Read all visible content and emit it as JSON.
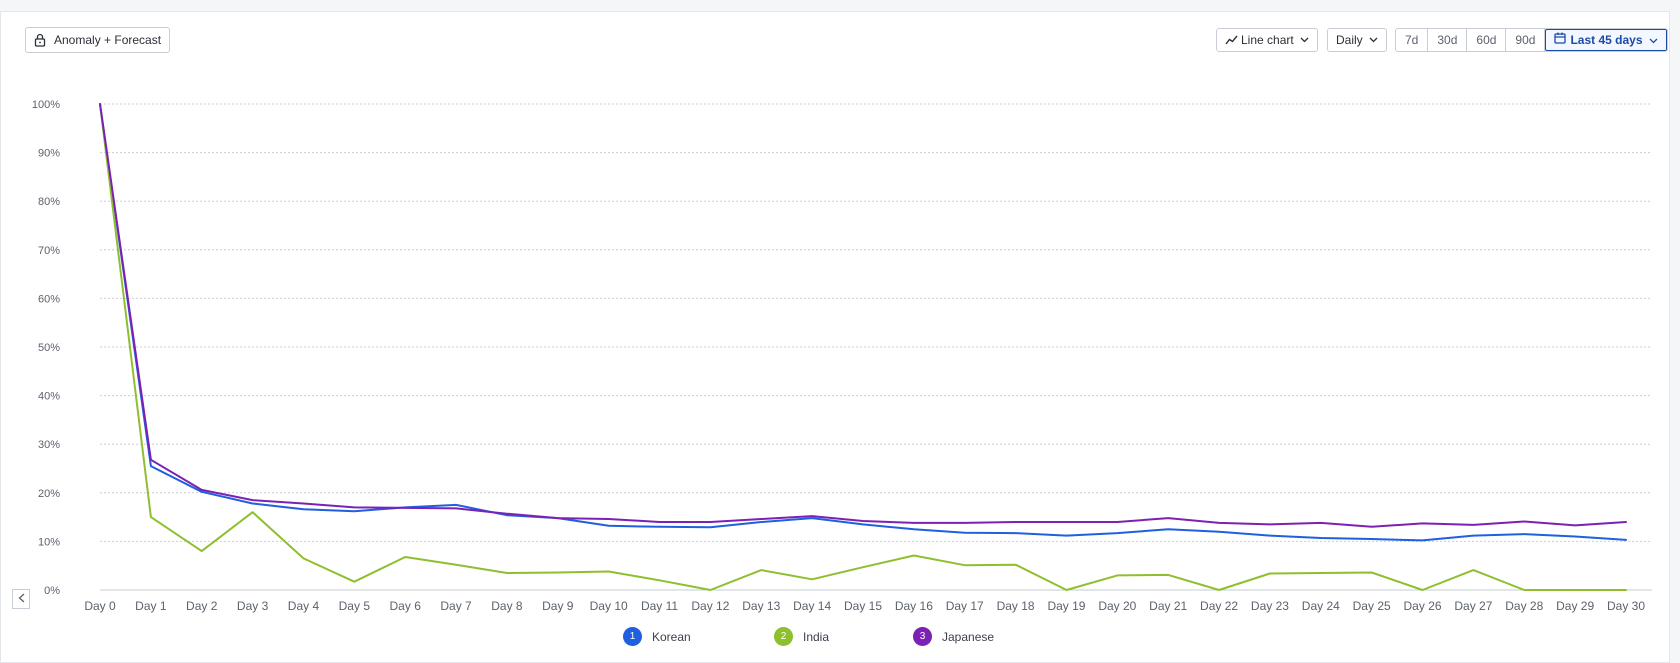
{
  "toolbar": {
    "anomaly_label": "Anomaly + Forecast",
    "chart_type_label": "Line chart",
    "interval_label": "Daily",
    "ranges": [
      "7d",
      "30d",
      "60d",
      "90d"
    ],
    "active_range_label": "Last 45 days"
  },
  "legend": [
    {
      "index": "1",
      "name": "Korean",
      "color": "#1f5fe0"
    },
    {
      "index": "2",
      "name": "India",
      "color": "#8fbf2e"
    },
    {
      "index": "3",
      "name": "Japanese",
      "color": "#7b22b4"
    }
  ],
  "chart_data": {
    "type": "line",
    "title": "",
    "xlabel": "",
    "ylabel": "",
    "ylim": [
      0,
      100
    ],
    "yticks": [
      "0%",
      "10%",
      "20%",
      "30%",
      "40%",
      "50%",
      "60%",
      "70%",
      "80%",
      "90%",
      "100%"
    ],
    "grid": true,
    "legend_position": "bottom",
    "categories": [
      "Day 0",
      "Day 1",
      "Day 2",
      "Day 3",
      "Day 4",
      "Day 5",
      "Day 6",
      "Day 7",
      "Day 8",
      "Day 9",
      "Day 10",
      "Day 11",
      "Day 12",
      "Day 13",
      "Day 14",
      "Day 15",
      "Day 16",
      "Day 17",
      "Day 18",
      "Day 19",
      "Day 20",
      "Day 21",
      "Day 22",
      "Day 23",
      "Day 24",
      "Day 25",
      "Day 26",
      "Day 27",
      "Day 28",
      "Day 29",
      "Day 30"
    ],
    "series": [
      {
        "name": "Korean",
        "color": "#1f5fe0",
        "values": [
          100,
          25.5,
          20.2,
          17.8,
          16.6,
          16.2,
          17,
          17.5,
          15.4,
          14.8,
          13.2,
          13,
          12.9,
          14,
          14.8,
          13.5,
          12.5,
          11.8,
          11.7,
          11.2,
          11.7,
          12.5,
          12,
          11.2,
          10.7,
          10.5,
          10.2,
          11.2,
          11.5,
          11,
          10.3
        ]
      },
      {
        "name": "India",
        "color": "#8fbf2e",
        "values": [
          100,
          15,
          8,
          16,
          6.5,
          1.7,
          6.8,
          5.2,
          3.5,
          3.6,
          3.8,
          2,
          0,
          4.1,
          2.2,
          4.7,
          7.1,
          5.1,
          5.2,
          0,
          3,
          3.1,
          0,
          3.4,
          3.5,
          3.6,
          0,
          4.1,
          0,
          0,
          0
        ]
      },
      {
        "name": "Japanese",
        "color": "#7b22b4",
        "values": [
          100,
          26.8,
          20.6,
          18.5,
          17.8,
          17,
          16.9,
          16.8,
          15.7,
          14.8,
          14.6,
          14,
          14,
          14.6,
          15.2,
          14.2,
          13.8,
          13.8,
          14,
          14,
          14,
          14.8,
          13.8,
          13.5,
          13.8,
          13,
          13.7,
          13.4,
          14.1,
          13.3,
          14
        ]
      }
    ]
  }
}
